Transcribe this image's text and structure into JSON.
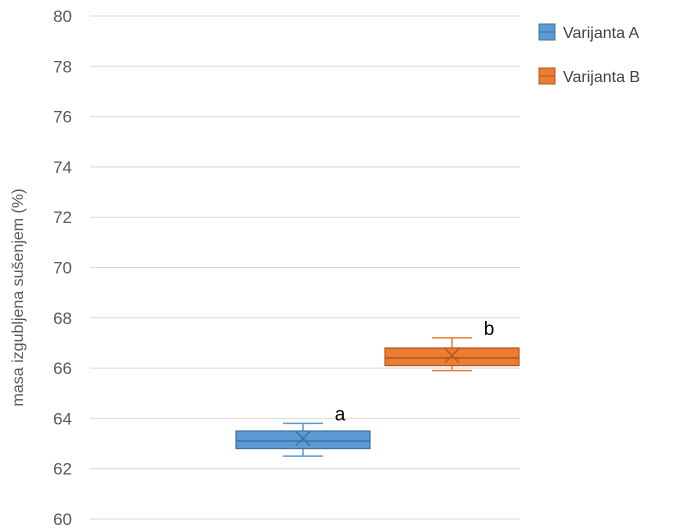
{
  "chart_data": {
    "type": "box",
    "title": "",
    "xlabel": "",
    "ylabel": "masa izgubljena sušenjem (%)",
    "ylim": [
      60,
      80
    ],
    "yticks": [
      60,
      62,
      64,
      66,
      68,
      70,
      72,
      74,
      76,
      78,
      80
    ],
    "grid": true,
    "legend_position": "top-right",
    "series": [
      {
        "name": "Varijanta A",
        "color": "#5b9bd5",
        "border_color": "#41719c",
        "min": 62.5,
        "q1": 62.8,
        "median": 63.1,
        "mean": 63.2,
        "q3": 63.5,
        "max": 63.8,
        "annotation": "a"
      },
      {
        "name": "Varijanta B",
        "color": "#ed7d31",
        "border_color": "#ae5a21",
        "min": 65.9,
        "q1": 66.1,
        "median": 66.4,
        "mean": 66.5,
        "q3": 66.8,
        "max": 67.2,
        "annotation": "b"
      }
    ]
  }
}
